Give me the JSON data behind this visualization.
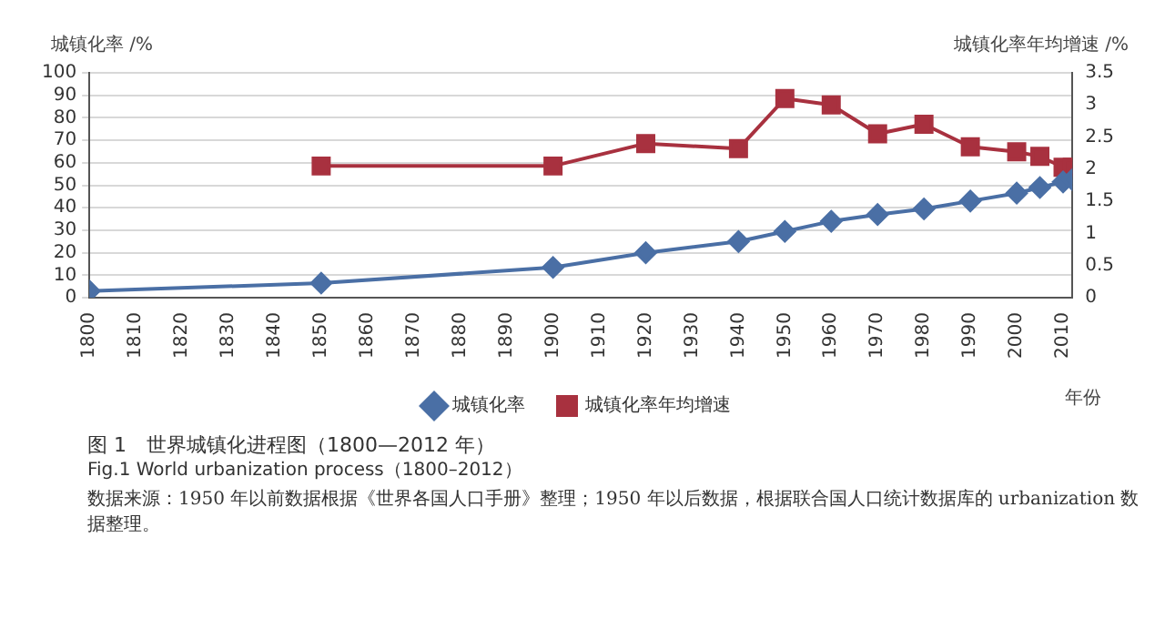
{
  "chart_data": {
    "type": "line",
    "title": "图 1　世界城镇化进程图（1800—2012 年）",
    "subtitle": "Fig.1  World urbanization process（1800–2012）",
    "annotations": [
      "数据来源：1950 年以前数据根据《世界各国人口手册》整理；1950 年以后数据，根据联合国人口统计数据库的 urbanization 数据整理。"
    ],
    "xlabel": "年份",
    "ylabel": "城镇化率 /%",
    "y2label": "城镇化率年均增速 /%",
    "x": [
      1800,
      1850,
      1900,
      1920,
      1940,
      1950,
      1960,
      1970,
      1980,
      1990,
      2000,
      2005,
      2010,
      2012
    ],
    "series": [
      {
        "name": "城镇化率",
        "color": "#4a6fa5",
        "marker": "diamond",
        "values": [
          3,
          6.5,
          13.5,
          20,
          25,
          29.5,
          34,
          37,
          39.5,
          43,
          46.5,
          49,
          51.5,
          52.5
        ]
      },
      {
        "name": "城镇化率年均增速",
        "color": "#a8313f",
        "marker": "square",
        "axis": "y2",
        "values": [
          null,
          2.05,
          2.05,
          2.4,
          2.32,
          3.1,
          3.0,
          2.55,
          2.7,
          2.35,
          2.27,
          2.2,
          2.03,
          2.03
        ]
      }
    ],
    "xlim": [
      1800,
      2012
    ],
    "xticks": [
      1800,
      1810,
      1820,
      1830,
      1840,
      1850,
      1860,
      1870,
      1880,
      1890,
      1900,
      1910,
      1920,
      1930,
      1940,
      1950,
      1960,
      1970,
      1980,
      1990,
      2000,
      2010
    ],
    "ylim": [
      0,
      100
    ],
    "yticks": [
      0,
      10,
      20,
      30,
      40,
      50,
      60,
      70,
      80,
      90,
      100
    ],
    "y2lim": [
      0,
      3.5
    ],
    "y2ticks": [
      0,
      0.5,
      1,
      1.5,
      2,
      2.5,
      3,
      3.5
    ],
    "grid": "y",
    "legend": "bottom",
    "line_style": "solid"
  }
}
